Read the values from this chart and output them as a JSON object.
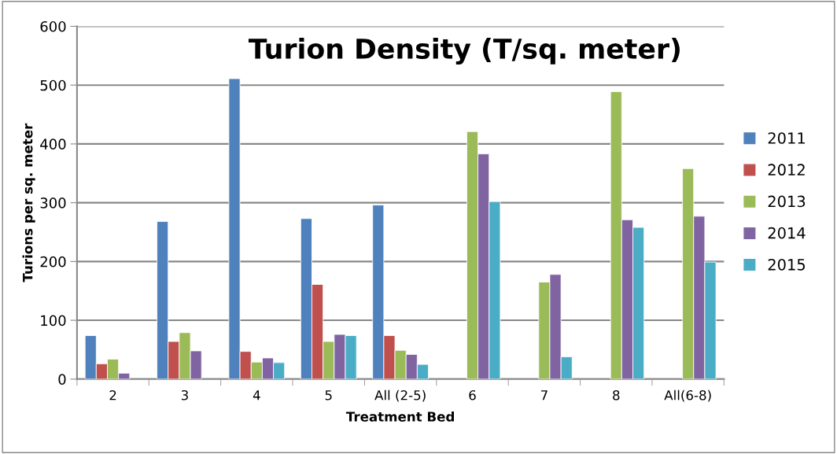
{
  "chart_data": {
    "type": "bar",
    "title": "Turion Density (T/sq. meter)",
    "xlabel": "Treatment Bed",
    "ylabel": "Turions per sq. meter",
    "categories": [
      "2",
      "3",
      "4",
      "5",
      "All (2-5)",
      "6",
      "7",
      "8",
      "All(6-8)"
    ],
    "series": [
      {
        "name": "2011",
        "color": "#4f81bd",
        "values": [
          74,
          268,
          511,
          273,
          296,
          null,
          null,
          null,
          null
        ]
      },
      {
        "name": "2012",
        "color": "#c0504d",
        "values": [
          26,
          64,
          47,
          161,
          74,
          null,
          null,
          null,
          null
        ]
      },
      {
        "name": "2013",
        "color": "#9bbb59",
        "values": [
          34,
          79,
          29,
          64,
          49,
          421,
          165,
          489,
          358
        ]
      },
      {
        "name": "2014",
        "color": "#8064a2",
        "values": [
          10,
          48,
          36,
          76,
          42,
          383,
          178,
          271,
          277
        ]
      },
      {
        "name": "2015",
        "color": "#4bacc6",
        "values": [
          null,
          null,
          28,
          74,
          25,
          302,
          38,
          258,
          199
        ]
      }
    ],
    "ylim": [
      0,
      600
    ],
    "yticks": [
      0,
      100,
      200,
      300,
      400,
      500,
      600
    ],
    "grid": "y",
    "legend": "right"
  }
}
